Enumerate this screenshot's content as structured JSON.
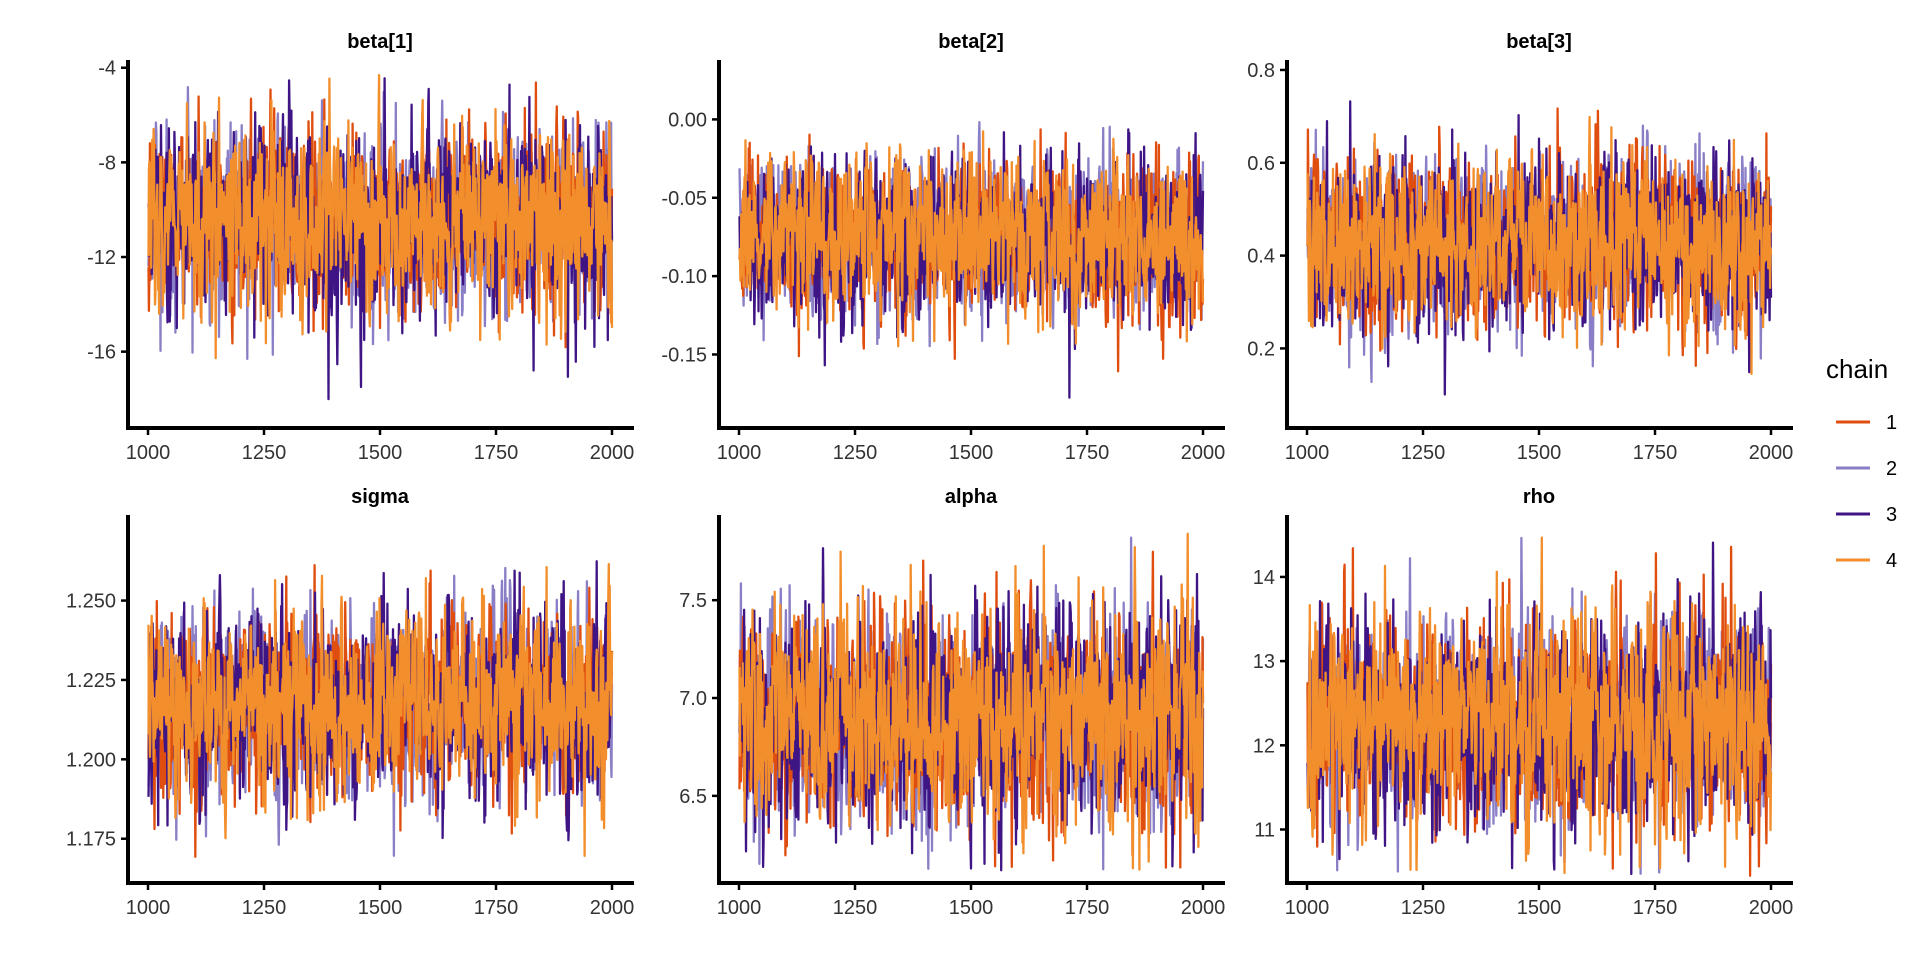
{
  "chart_data": {
    "type": "line",
    "figure_kind": "MCMC trace plot",
    "x_axis": {
      "range": [
        1000,
        2000
      ],
      "ticks": [
        1000,
        1250,
        1500,
        1750,
        2000
      ]
    },
    "legend": {
      "title": "chain",
      "position": "right",
      "entries": [
        {
          "label": "1",
          "color": "#E04E0F"
        },
        {
          "label": "2",
          "color": "#8A7FC6"
        },
        {
          "label": "3",
          "color": "#3F1585"
        },
        {
          "label": "4",
          "color": "#F28E2B"
        }
      ]
    },
    "draw_order": [
      1,
      0,
      2,
      3
    ],
    "panels": [
      {
        "id": "beta1",
        "title": "beta[1]",
        "ylim": [
          -19.1,
          -3.8
        ],
        "yticks": [
          -16,
          -12,
          -8,
          -4
        ],
        "ytick_labels": [
          "-16",
          "-12",
          "-8",
          "-4"
        ],
        "center": -10.5,
        "spread": 1.9,
        "extremes": {
          "min": -18.6,
          "max": -4.3
        }
      },
      {
        "id": "beta2",
        "title": "beta[2]",
        "ylim": [
          -0.195,
          0.036
        ],
        "yticks": [
          -0.15,
          -0.1,
          -0.05,
          0.0
        ],
        "ytick_labels": [
          "-0.15",
          "-0.10",
          "-0.05",
          "0.00"
        ],
        "center": -0.075,
        "spread": 0.025,
        "extremes": {
          "min": -0.185,
          "max": 0.028
        }
      },
      {
        "id": "beta3",
        "title": "beta[3]",
        "ylim": [
          0.035,
          0.815
        ],
        "yticks": [
          0.2,
          0.4,
          0.6,
          0.8
        ],
        "ytick_labels": [
          "0.2",
          "0.4",
          "0.6",
          "0.8"
        ],
        "center": 0.43,
        "spread": 0.09,
        "extremes": {
          "min": 0.06,
          "max": 0.78
        }
      },
      {
        "id": "sigma",
        "title": "sigma",
        "ylim": [
          1.162,
          1.276
        ],
        "yticks": [
          1.175,
          1.2,
          1.225,
          1.25
        ],
        "ytick_labels": [
          "1.175",
          "1.200",
          "1.225",
          "1.250"
        ],
        "center": 1.218,
        "spread": 0.014,
        "extremes": {
          "min": 1.169,
          "max": 1.269
        }
      },
      {
        "id": "alpha",
        "title": "alpha",
        "ylim": [
          6.07,
          7.92
        ],
        "yticks": [
          6.5,
          7.0,
          7.5
        ],
        "ytick_labels": [
          "6.5",
          "7.0",
          "7.5"
        ],
        "center": 6.9,
        "spread": 0.27,
        "extremes": {
          "min": 6.12,
          "max": 7.84
        }
      },
      {
        "id": "rho",
        "title": "rho",
        "ylim": [
          10.4,
          14.7
        ],
        "yticks": [
          11,
          12,
          13,
          14
        ],
        "ytick_labels": [
          "11",
          "12",
          "13",
          "14"
        ],
        "center": 12.3,
        "spread": 0.62,
        "extremes": {
          "min": 10.45,
          "max": 14.47
        }
      }
    ]
  }
}
